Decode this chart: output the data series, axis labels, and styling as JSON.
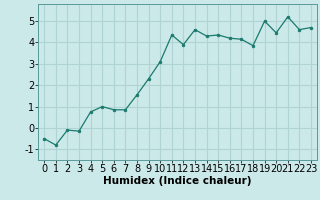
{
  "x": [
    0,
    1,
    2,
    3,
    4,
    5,
    6,
    7,
    8,
    9,
    10,
    11,
    12,
    13,
    14,
    15,
    16,
    17,
    18,
    19,
    20,
    21,
    22,
    23
  ],
  "y": [
    -0.5,
    -0.8,
    -0.1,
    -0.15,
    0.75,
    1.0,
    0.85,
    0.85,
    1.55,
    2.3,
    3.1,
    4.35,
    3.9,
    4.6,
    4.3,
    4.35,
    4.2,
    4.15,
    3.85,
    5.0,
    4.45,
    5.2,
    4.6,
    4.7
  ],
  "xlabel": "Humidex (Indice chaleur)",
  "ylim": [
    -1.5,
    5.8
  ],
  "xlim": [
    -0.5,
    23.5
  ],
  "yticks": [
    -1,
    0,
    1,
    2,
    3,
    4,
    5
  ],
  "xticks": [
    0,
    1,
    2,
    3,
    4,
    5,
    6,
    7,
    8,
    9,
    10,
    11,
    12,
    13,
    14,
    15,
    16,
    17,
    18,
    19,
    20,
    21,
    22,
    23
  ],
  "line_color": "#1a7a6e",
  "marker": "o",
  "marker_size": 2.0,
  "bg_color": "#cce9e9",
  "grid_color": "#b0d4d4",
  "xlabel_fontsize": 7.5,
  "tick_fontsize": 7.0
}
